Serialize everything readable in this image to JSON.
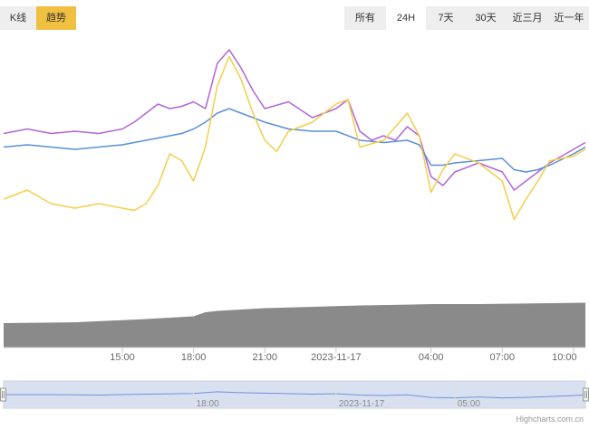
{
  "tabs": [
    {
      "label": "K线",
      "active": false
    },
    {
      "label": "趋势",
      "active": true
    }
  ],
  "ranges": [
    {
      "label": "所有",
      "active": false
    },
    {
      "label": "24H",
      "active": true
    },
    {
      "label": "7天",
      "active": false
    },
    {
      "label": "30天",
      "active": false
    },
    {
      "label": "近三月",
      "active": false
    },
    {
      "label": "近一年",
      "active": false
    }
  ],
  "colors": {
    "purple": "#b266d6",
    "blue": "#5b8fd8",
    "yellow": "#f2cf4a",
    "volume": "#8a8a8a",
    "navigator_fill": "#cfd8f0",
    "navigator_line": "#6f93de"
  },
  "navigator": {
    "labels": [
      "18:00",
      "2023-11-17",
      "05:00"
    ]
  },
  "credit": "Highcharts.com.cn",
  "chart_data": {
    "type": "line",
    "x_labels": [
      "15:00",
      "18:00",
      "21:00",
      "2023-11-17",
      "04:00",
      "07:00",
      "10:00"
    ],
    "x_hours": [
      15,
      18,
      21,
      24,
      28,
      31,
      34
    ],
    "x_range": [
      10,
      34.5
    ],
    "y_range": [
      0,
      100
    ],
    "grid": false,
    "legend": "none",
    "series": [
      {
        "color": "#b266d6",
        "points": [
          [
            10,
            61
          ],
          [
            11,
            63
          ],
          [
            12,
            61
          ],
          [
            13,
            62
          ],
          [
            14,
            61
          ],
          [
            15,
            63
          ],
          [
            15.5,
            66
          ],
          [
            16,
            70
          ],
          [
            16.5,
            74
          ],
          [
            17,
            72
          ],
          [
            17.5,
            73
          ],
          [
            18,
            75
          ],
          [
            18.5,
            72
          ],
          [
            19,
            92
          ],
          [
            19.5,
            98
          ],
          [
            20,
            90
          ],
          [
            20.5,
            80
          ],
          [
            21,
            72
          ],
          [
            22,
            75
          ],
          [
            23,
            68
          ],
          [
            23.5,
            70
          ],
          [
            24,
            72
          ],
          [
            24.5,
            76
          ],
          [
            25,
            62
          ],
          [
            25.5,
            58
          ],
          [
            26,
            60
          ],
          [
            26.5,
            58
          ],
          [
            27,
            64
          ],
          [
            27.5,
            60
          ],
          [
            28,
            42
          ],
          [
            28.5,
            38
          ],
          [
            29,
            44
          ],
          [
            30,
            48
          ],
          [
            31,
            44
          ],
          [
            31.5,
            36
          ],
          [
            32,
            40
          ],
          [
            32.5,
            44
          ],
          [
            33,
            48
          ],
          [
            34,
            54
          ],
          [
            34.5,
            57
          ]
        ]
      },
      {
        "color": "#5b8fd8",
        "points": [
          [
            10,
            55
          ],
          [
            11,
            56
          ],
          [
            12,
            55
          ],
          [
            13,
            54
          ],
          [
            14,
            55
          ],
          [
            15,
            56
          ],
          [
            15.5,
            57
          ],
          [
            16,
            58
          ],
          [
            16.5,
            59
          ],
          [
            17,
            60
          ],
          [
            17.5,
            61
          ],
          [
            18,
            63
          ],
          [
            18.5,
            66
          ],
          [
            19,
            70
          ],
          [
            19.5,
            72
          ],
          [
            20,
            70
          ],
          [
            21,
            66
          ],
          [
            22,
            63
          ],
          [
            23,
            62
          ],
          [
            24,
            62
          ],
          [
            25,
            58
          ],
          [
            26,
            57
          ],
          [
            27,
            58
          ],
          [
            27.5,
            56
          ],
          [
            28,
            47
          ],
          [
            28.5,
            47
          ],
          [
            29,
            48
          ],
          [
            30,
            49
          ],
          [
            31,
            50
          ],
          [
            31.5,
            45
          ],
          [
            32,
            44
          ],
          [
            32.5,
            45
          ],
          [
            33,
            47
          ],
          [
            34,
            52
          ],
          [
            34.5,
            55
          ]
        ]
      },
      {
        "color": "#f2cf4a",
        "points": [
          [
            10,
            32
          ],
          [
            11,
            36
          ],
          [
            12,
            30
          ],
          [
            13,
            28
          ],
          [
            14,
            30
          ],
          [
            15,
            28
          ],
          [
            15.5,
            27
          ],
          [
            16,
            30
          ],
          [
            16.5,
            38
          ],
          [
            17,
            52
          ],
          [
            17.5,
            49
          ],
          [
            18,
            40
          ],
          [
            18.5,
            55
          ],
          [
            19,
            82
          ],
          [
            19.5,
            95
          ],
          [
            20,
            85
          ],
          [
            20.5,
            70
          ],
          [
            21,
            58
          ],
          [
            21.5,
            53
          ],
          [
            22,
            62
          ],
          [
            23,
            66
          ],
          [
            24,
            74
          ],
          [
            24.5,
            76
          ],
          [
            25,
            55
          ],
          [
            26,
            58
          ],
          [
            27,
            70
          ],
          [
            27.5,
            60
          ],
          [
            28,
            35
          ],
          [
            28.5,
            45
          ],
          [
            29,
            52
          ],
          [
            30,
            48
          ],
          [
            31,
            40
          ],
          [
            31.5,
            23
          ],
          [
            32,
            32
          ],
          [
            32.5,
            40
          ],
          [
            33,
            49
          ],
          [
            34,
            51
          ],
          [
            34.5,
            54
          ]
        ]
      },
      {
        "type": "area",
        "color": "#8a8a8a",
        "points": [
          [
            10,
            9
          ],
          [
            13,
            9.3
          ],
          [
            16,
            10.5
          ],
          [
            17,
            11
          ],
          [
            18,
            11.5
          ],
          [
            18.5,
            13
          ],
          [
            19,
            13.5
          ],
          [
            20,
            14
          ],
          [
            21,
            14.5
          ],
          [
            23,
            15
          ],
          [
            25,
            15.5
          ],
          [
            27,
            15.8
          ],
          [
            28,
            16
          ],
          [
            30,
            16
          ],
          [
            34.5,
            16.5
          ]
        ]
      }
    ],
    "navigator_points": [
      [
        10,
        50
      ],
      [
        12,
        50
      ],
      [
        14,
        48
      ],
      [
        16,
        52
      ],
      [
        18,
        55
      ],
      [
        19,
        62
      ],
      [
        20,
        58
      ],
      [
        21,
        56
      ],
      [
        23,
        52
      ],
      [
        24,
        54
      ],
      [
        25,
        48
      ],
      [
        26,
        46
      ],
      [
        27,
        49
      ],
      [
        28,
        38
      ],
      [
        29,
        36
      ],
      [
        30,
        40
      ],
      [
        31,
        36
      ],
      [
        32,
        38
      ],
      [
        33,
        42
      ],
      [
        34,
        46
      ],
      [
        34.5,
        48
      ]
    ]
  }
}
